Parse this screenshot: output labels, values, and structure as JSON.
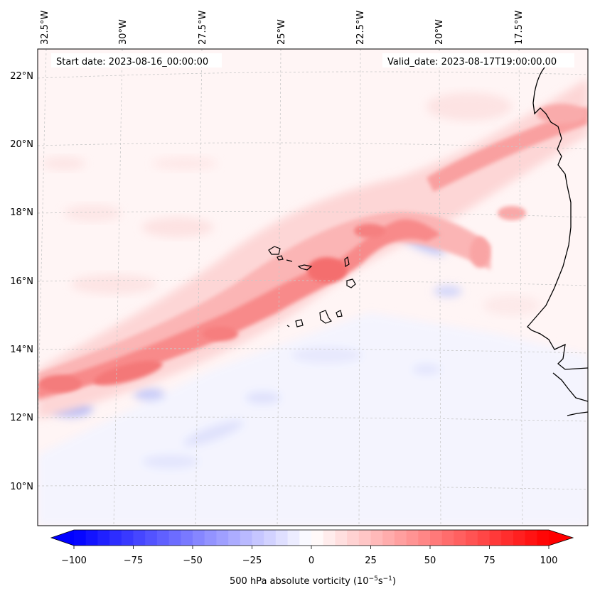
{
  "header": {
    "start_label": "Start date: 2023-08-16_00:00:00",
    "valid_label": "Valid_date: 2023-08-17T19:00:00.00"
  },
  "axes": {
    "lon_labels": [
      "32.5°W",
      "30°W",
      "27.5°W",
      "25°W",
      "22.5°W",
      "20°W",
      "17.5°W"
    ],
    "lat_labels": [
      "22°N",
      "20°N",
      "18°N",
      "16°N",
      "14°N",
      "12°N",
      "10°N"
    ]
  },
  "colorbar": {
    "label": "500 hPa absolute vorticity (10",
    "label_exp": "−5",
    "label_unit": "s",
    "label_exp2": "−1",
    "label_close": ")",
    "ticks": [
      "−100",
      "−75",
      "−50",
      "−25",
      "0",
      "25",
      "50",
      "75",
      "100"
    ],
    "range": [
      -100,
      100
    ],
    "low_color": "#0000ff",
    "high_color": "#ff0000"
  },
  "map": {
    "field": "500 hPa absolute vorticity",
    "projection": "lambert",
    "coastline_color": "#000000",
    "gridline_color": "#c8c8c8"
  }
}
